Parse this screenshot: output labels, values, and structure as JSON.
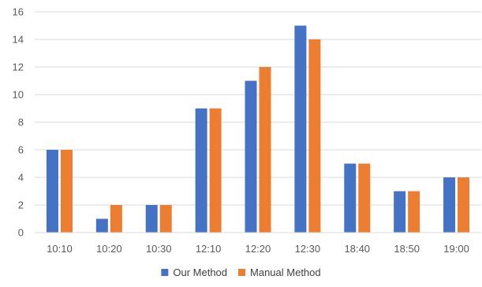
{
  "chart_data": {
    "type": "bar",
    "title": "",
    "xlabel": "",
    "ylabel": "",
    "categories": [
      "10:10",
      "10:20",
      "10:30",
      "12:10",
      "12:20",
      "12:30",
      "18:40",
      "18:50",
      "19:00"
    ],
    "series": [
      {
        "name": "Our Method",
        "color": "#4472c4",
        "values": [
          6,
          1,
          2,
          9,
          11,
          15,
          5,
          3,
          4
        ]
      },
      {
        "name": "Manual Method",
        "color": "#ed7d31",
        "values": [
          6,
          2,
          2,
          9,
          12,
          14,
          5,
          3,
          4
        ]
      }
    ],
    "ylim": [
      0,
      16
    ],
    "yticks": [
      "0",
      "2",
      "4",
      "6",
      "8",
      "10",
      "12",
      "14",
      "16"
    ],
    "grid": true,
    "legend_position": "bottom"
  }
}
